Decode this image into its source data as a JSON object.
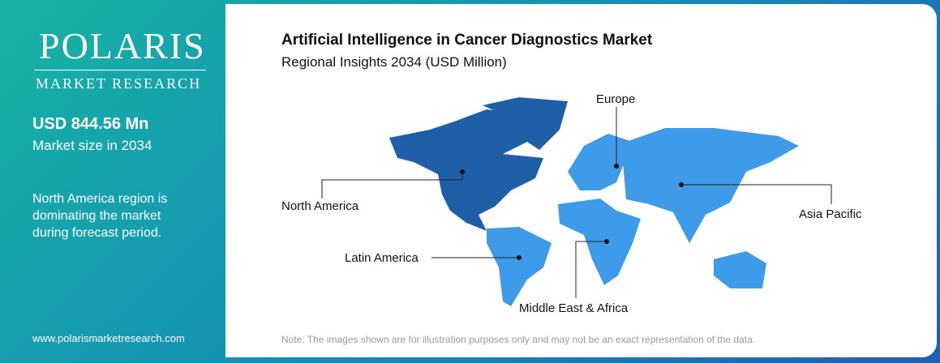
{
  "brand": {
    "name": "POLARIS",
    "tagline": "MARKET RESEARCH"
  },
  "sidebar": {
    "market_size": "USD 844.56 Mn",
    "market_size_caption": "Market size in 2034",
    "insight": "North America region is dominating the market during forecast period.",
    "website": "www.polarismarketresearch.com"
  },
  "header": {
    "title": "Artificial Intelligence in Cancer Diagnostics Market",
    "subtitle": "Regional Insights 2034 (USD Million)"
  },
  "regions": [
    {
      "label": "Europe"
    },
    {
      "label": "North America"
    },
    {
      "label": "Asia Pacific"
    },
    {
      "label": "Latin America"
    },
    {
      "label": "Middle East & Africa"
    }
  ],
  "note": "Note: The images shown are for illustration purposes only and may not be an exact representation of the data."
}
